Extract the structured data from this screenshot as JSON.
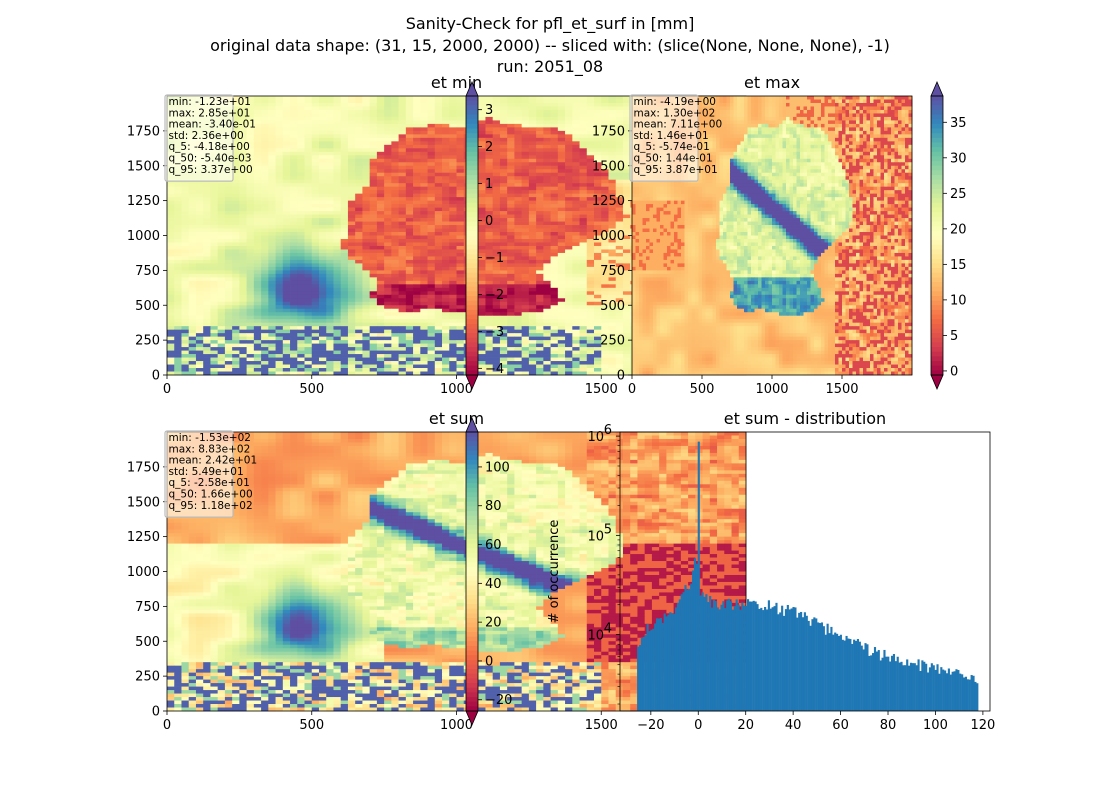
{
  "figure": {
    "title": "Sanity-Check for pfl_et_surf in [mm]",
    "subtitle": "original data shape: (31, 15, 2000, 2000) -- sliced with: (slice(None, None, None), -1)",
    "run": "run: 2051_08"
  },
  "chart_data": [
    {
      "type": "heatmap",
      "title": "et min",
      "xlabel": "",
      "ylabel": "",
      "xlim": [
        0,
        2000
      ],
      "ylim": [
        0,
        2000
      ],
      "x_ticks": [
        0,
        500,
        1000,
        1500
      ],
      "y_ticks": [
        0,
        250,
        500,
        750,
        1000,
        1250,
        1500,
        1750
      ],
      "colormap": "Spectral",
      "colorbar": {
        "min": -4.18,
        "max": 3.37,
        "ticks": [
          "3",
          "2",
          "1",
          "0",
          "−1",
          "−2",
          "−3",
          "−4"
        ],
        "tick_values": [
          3,
          2,
          1,
          0,
          -1,
          -2,
          -3,
          -4
        ],
        "extend": "both"
      },
      "stats": [
        "min: -1.23e+01",
        "max: 2.85e+01",
        "mean: -3.40e-01",
        "std: 2.36e+00",
        "q_5: -4.18e+00",
        "q_50: -5.40e-03",
        "q_95: 3.37e+00"
      ],
      "field": "min"
    },
    {
      "type": "heatmap",
      "title": "et max",
      "xlabel": "",
      "ylabel": "",
      "xlim": [
        0,
        2000
      ],
      "ylim": [
        0,
        2000
      ],
      "x_ticks": [
        0,
        500,
        1000,
        1500
      ],
      "y_ticks": [
        0,
        250,
        500,
        750,
        1000,
        1250,
        1500,
        1750
      ],
      "colormap": "Spectral",
      "colorbar": {
        "min": -0.574,
        "max": 38.7,
        "ticks": [
          "35",
          "30",
          "25",
          "20",
          "15",
          "10",
          "5",
          "0"
        ],
        "tick_values": [
          35,
          30,
          25,
          20,
          15,
          10,
          5,
          0
        ],
        "extend": "both"
      },
      "stats": [
        "min: -4.19e+00",
        "max: 1.30e+02",
        "mean: 7.11e+00",
        "std: 1.46e+01",
        "q_5: -5.74e-01",
        "q_50: 1.44e-01",
        "q_95: 3.87e+01"
      ],
      "field": "max"
    },
    {
      "type": "heatmap",
      "title": "et sum",
      "xlabel": "",
      "ylabel": "",
      "xlim": [
        0,
        2000
      ],
      "ylim": [
        0,
        2000
      ],
      "x_ticks": [
        0,
        500,
        1000,
        1500
      ],
      "y_ticks": [
        0,
        250,
        500,
        750,
        1000,
        1250,
        1500,
        1750
      ],
      "colormap": "Spectral",
      "colorbar": {
        "min": -25.8,
        "max": 118,
        "ticks": [
          "100",
          "80",
          "60",
          "40",
          "20",
          "0",
          "−20"
        ],
        "tick_values": [
          100,
          80,
          60,
          40,
          20,
          0,
          -20
        ],
        "extend": "both"
      },
      "stats": [
        "min: -1.53e+02",
        "max: 8.83e+02",
        "mean: 2.42e+01",
        "std: 5.49e+01",
        "q_5: -2.58e+01",
        "q_50: 1.66e+00",
        "q_95: 1.18e+02"
      ],
      "field": "sum"
    },
    {
      "type": "bar",
      "subtype": "histogram",
      "title": "et sum - distribution",
      "xlabel": "",
      "ylabel": "# of occurrence",
      "xlim": [
        -33,
        123
      ],
      "ylim": [
        1700,
        1100000
      ],
      "log_y": true,
      "color": "#1f77b4",
      "x_ticks": [
        -20,
        0,
        20,
        40,
        60,
        80,
        100,
        120
      ],
      "x_tick_labels": [
        "−20",
        "0",
        "20",
        "40",
        "60",
        "80",
        "100",
        "120"
      ],
      "y_ticks": [
        10000,
        100000,
        1000000
      ],
      "y_tick_labels": [
        [
          "10",
          "4"
        ],
        [
          "10",
          "5"
        ],
        [
          "10",
          "6"
        ]
      ],
      "bin_range": [
        -25.8,
        118
      ],
      "bin_count": 180,
      "spike": {
        "x": 0,
        "count": 880000
      },
      "shape_points": [
        [
          -25.8,
          8000
        ],
        [
          -22,
          11000
        ],
        [
          -18,
          13000
        ],
        [
          -14,
          16000
        ],
        [
          -10,
          19000
        ],
        [
          -6,
          26000
        ],
        [
          -3,
          36000
        ],
        [
          -1,
          60000
        ],
        [
          0.5,
          28000
        ],
        [
          2,
          23000
        ],
        [
          10,
          20000
        ],
        [
          20,
          20500
        ],
        [
          28,
          20000
        ],
        [
          34,
          18500
        ],
        [
          40,
          17000
        ],
        [
          48,
          13500
        ],
        [
          54,
          11500
        ],
        [
          60,
          9500
        ],
        [
          66,
          8200
        ],
        [
          72,
          7000
        ],
        [
          80,
          6000
        ],
        [
          88,
          5300
        ],
        [
          96,
          4800
        ],
        [
          104,
          4300
        ],
        [
          110,
          4000
        ],
        [
          118,
          3300
        ]
      ]
    }
  ]
}
